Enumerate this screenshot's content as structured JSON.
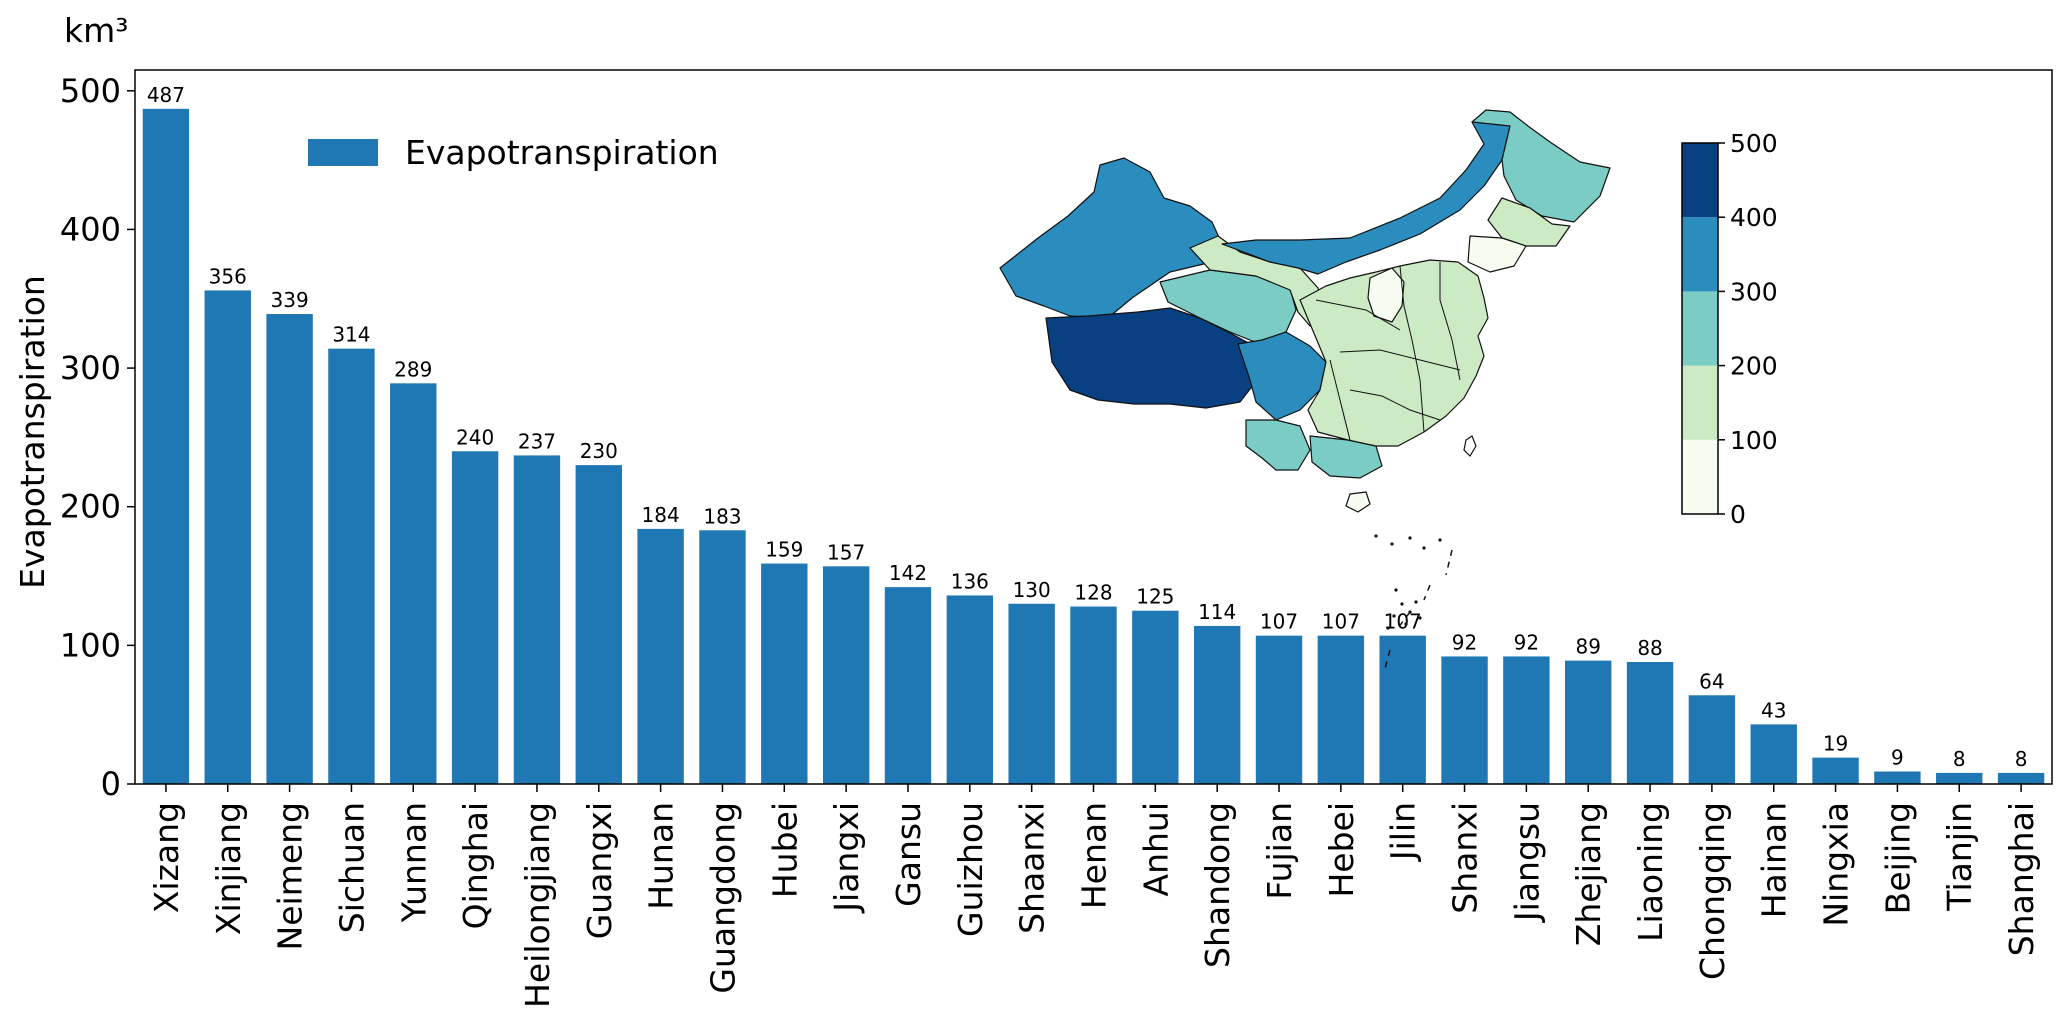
{
  "chart_data": {
    "type": "bar",
    "unit": "km³",
    "ylabel": "Evapotranspiration",
    "xlabel": "",
    "ylim": [
      0,
      515
    ],
    "yticks": [
      0,
      100,
      200,
      300,
      400,
      500
    ],
    "legend": {
      "label": "Evapotranspiration",
      "placement": "top-left"
    },
    "bar_color": "#1f77b4",
    "categories": [
      "Xizang",
      "Xinjiang",
      "Neimeng",
      "Sichuan",
      "Yunnan",
      "Qinghai",
      "Heilongjiang",
      "Guangxi",
      "Hunan",
      "Guangdong",
      "Hubei",
      "Jiangxi",
      "Gansu",
      "Guizhou",
      "Shaanxi",
      "Henan",
      "Anhui",
      "Shandong",
      "Fujian",
      "Hebei",
      "Jilin",
      "Shanxi",
      "Jiangsu",
      "Zhejiang",
      "Liaoning",
      "Chongqing",
      "Hainan",
      "Ningxia",
      "Beijing",
      "Tianjin",
      "Shanghai"
    ],
    "values": [
      487,
      356,
      339,
      314,
      289,
      240,
      237,
      230,
      184,
      183,
      159,
      157,
      142,
      136,
      130,
      128,
      125,
      114,
      107,
      107,
      107,
      92,
      92,
      89,
      88,
      64,
      43,
      19,
      9,
      8,
      8
    ],
    "inset_map": {
      "type": "choropleth",
      "colorbar": {
        "ticks": [
          "0",
          "100",
          "200",
          "300",
          "400",
          "500"
        ],
        "colors": [
          "#f7fcf0",
          "#ccebc5",
          "#7bccc4",
          "#2b8cbe",
          "#084081"
        ]
      }
    }
  }
}
